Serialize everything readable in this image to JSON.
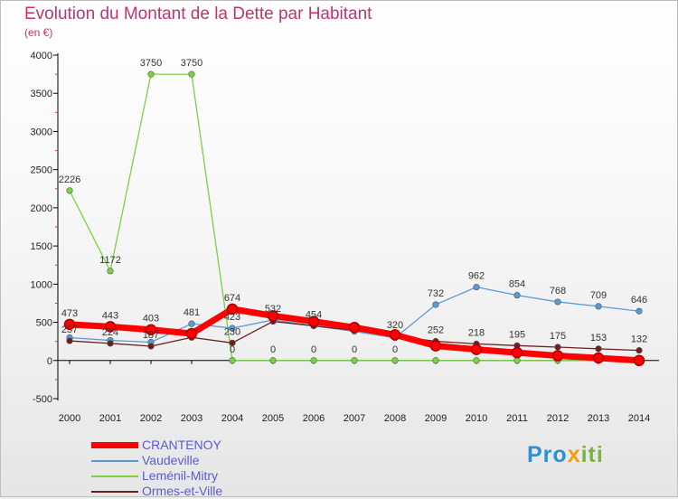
{
  "title": "Evolution du Montant de la Dette par Habitant",
  "unit": "(en €)",
  "logo": {
    "text_a": "Pro",
    "text_b": "x",
    "text_c": "iti"
  },
  "chart_data": {
    "type": "line",
    "title": "Evolution du Montant de la Dette par Habitant",
    "ylabel": "(en €)",
    "x": [
      "2000",
      "2001",
      "2002",
      "2003",
      "2004",
      "2005",
      "2006",
      "2007",
      "2008",
      "2009",
      "2010",
      "2011",
      "2012",
      "2013",
      "2014"
    ],
    "y_ticks": [
      4000,
      3500,
      3000,
      2500,
      2000,
      1500,
      1000,
      500,
      0,
      -500
    ],
    "ylim": [
      -500,
      4000
    ],
    "grid": false,
    "legend_position": "bottom-left",
    "series": [
      {
        "name": "CRANTENOY",
        "color": "#ff0000",
        "values": [
          473,
          443,
          403,
          353,
          674,
          585,
          511,
          433,
          337,
          192,
          144,
          103,
          62,
          33,
          0
        ],
        "labels": [
          "473",
          "443",
          "403",
          "",
          "674",
          "",
          "",
          "",
          "",
          "",
          "",
          "",
          "",
          "",
          ""
        ]
      },
      {
        "name": "Vaudeville",
        "color": "#5b9bd5",
        "values": [
          299,
          263,
          240,
          481,
          423,
          532,
          454,
          381,
          297,
          732,
          962,
          854,
          768,
          709,
          646
        ],
        "labels": [
          "",
          "",
          "",
          "481",
          "423",
          "532",
          "454",
          "",
          "",
          "732",
          "962",
          "854",
          "768",
          "709",
          "646"
        ]
      },
      {
        "name": "Leménil-Mitry",
        "color": "#7cd142",
        "values": [
          2226,
          1172,
          3750,
          3750,
          0,
          0,
          0,
          0,
          0,
          0,
          0,
          0,
          0,
          0,
          0
        ],
        "labels": [
          "2226",
          "1172",
          "3750",
          "3750",
          "0",
          "0",
          "0",
          "0",
          "0",
          "",
          "",
          "",
          "",
          "",
          ""
        ]
      },
      {
        "name": "Ormes-et-Ville",
        "color": "#6b2020",
        "values": [
          257,
          224,
          187,
          302,
          230,
          512,
          454,
          394,
          320,
          252,
          218,
          195,
          175,
          153,
          132
        ],
        "labels": [
          "257",
          "224",
          "187",
          "",
          "230",
          "",
          "",
          "",
          "320",
          "252",
          "218",
          "195",
          "175",
          "153",
          "132"
        ]
      }
    ]
  }
}
